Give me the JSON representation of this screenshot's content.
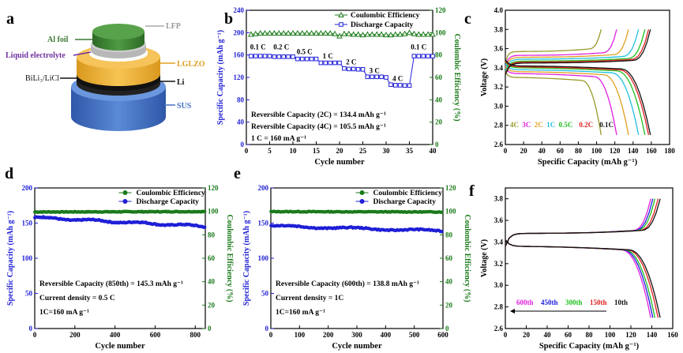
{
  "panel_letters": [
    "a",
    "b",
    "c",
    "d",
    "e",
    "f"
  ],
  "battery": {
    "labels": [
      "Al foil",
      "LFP",
      "Liquid electrolyte",
      "LGLZO",
      "BiLi₃/LiCl",
      "Li",
      "SUS"
    ],
    "colors": {
      "al": "#3c7a34",
      "lfp": "#aaaaaa",
      "liquid": "#7030a0",
      "lglzo": "#f2b233",
      "bili": "#1a1a1a",
      "li": "#1a1a1a",
      "sus": "#4472c4"
    }
  },
  "colors": {
    "blue": "#1f1fd6",
    "green": "#1a7a1a",
    "axis": "#000000"
  },
  "chart_data": [
    {
      "panel": "b",
      "type": "scatter",
      "xlabel": "Cycle number",
      "ylabel": "Specific Capacity (mAh g⁻¹)",
      "y2label": "Coulombic Efficiency (%)",
      "xlim": [
        0,
        40
      ],
      "ylim": [
        0,
        240
      ],
      "y2lim": [
        0,
        120
      ],
      "xticks": [
        0,
        5,
        10,
        15,
        20,
        25,
        30,
        35,
        40
      ],
      "yticks": [
        0,
        40,
        80,
        120,
        160,
        200,
        240
      ],
      "y2ticks": [
        0,
        20,
        40,
        60,
        80,
        100,
        120
      ],
      "legend": [
        "Coulombic Efficiency",
        "Discharge Capacity"
      ],
      "rate_labels": [
        {
          "text": "0.1 C",
          "x": 2.5,
          "y": 170
        },
        {
          "text": "0.2 C",
          "x": 7.5,
          "y": 170
        },
        {
          "text": "0.5 C",
          "x": 12.5,
          "y": 162
        },
        {
          "text": "1 C",
          "x": 17.5,
          "y": 154
        },
        {
          "text": "2 C",
          "x": 22.5,
          "y": 143
        },
        {
          "text": "3 C",
          "x": 27.5,
          "y": 128
        },
        {
          "text": "4 C",
          "x": 32.5,
          "y": 114
        },
        {
          "text": "0.1 C",
          "x": 37,
          "y": 170
        }
      ],
      "annotations": [
        "Reversible Capacity (2C) = 134.4 mAh g⁻¹",
        "Reversible Capacity (4C) = 105.5 mAh g⁻¹",
        "1 C = 160 mA g⁻¹"
      ],
      "series": [
        {
          "name": "Coulombic Efficiency",
          "axis": "right",
          "marker": "triangle",
          "x": [
            1,
            2,
            3,
            4,
            5,
            6,
            7,
            8,
            9,
            10,
            11,
            12,
            13,
            14,
            15,
            16,
            17,
            18,
            19,
            20,
            21,
            22,
            23,
            24,
            25,
            26,
            27,
            28,
            29,
            30,
            31,
            32,
            33,
            34,
            35,
            36,
            37,
            38,
            39,
            40
          ],
          "values": [
            98.5,
            99,
            99.5,
            99.5,
            99.5,
            99.5,
            99.5,
            99.5,
            99.5,
            99.5,
            99.5,
            99.5,
            99.5,
            99.5,
            99.5,
            99.5,
            99.5,
            99.5,
            99,
            97,
            99,
            99,
            98.5,
            98.5,
            98,
            98.5,
            98.5,
            98.5,
            98.5,
            98,
            98,
            98.5,
            98.5,
            99,
            100,
            99,
            98.5,
            98.5,
            98.5,
            98.5
          ]
        },
        {
          "name": "Discharge Capacity",
          "axis": "left",
          "marker": "square",
          "x": [
            1,
            2,
            3,
            4,
            5,
            6,
            7,
            8,
            9,
            10,
            11,
            12,
            13,
            14,
            15,
            16,
            17,
            18,
            19,
            20,
            21,
            22,
            23,
            24,
            25,
            26,
            27,
            28,
            29,
            30,
            31,
            32,
            33,
            34,
            35,
            36,
            37,
            38,
            39,
            40
          ],
          "values": [
            158,
            158,
            158,
            158,
            158,
            157,
            157,
            157,
            157,
            157,
            153,
            153,
            153,
            153,
            153,
            146,
            146,
            146,
            146,
            146,
            136,
            135,
            135,
            134.5,
            134.4,
            121,
            121,
            121,
            121,
            120,
            107,
            106,
            106,
            105.5,
            105.5,
            158,
            158,
            158,
            158,
            158
          ]
        }
      ]
    },
    {
      "panel": "c",
      "type": "line",
      "xlabel": "Specific Capacity (mAh g⁻¹)",
      "ylabel": "Voltage (V)",
      "xlim": [
        0,
        180
      ],
      "ylim": [
        2.6,
        4.0
      ],
      "xticks": [
        0,
        20,
        40,
        60,
        80,
        100,
        120,
        140,
        160,
        180
      ],
      "yticks": [
        2.6,
        2.8,
        3.0,
        3.2,
        3.4,
        3.6,
        3.8,
        4.0
      ],
      "legend_labels": [
        "4C",
        "3C",
        "2C",
        "1C",
        "0.5C",
        "0.2C",
        "0.1C"
      ],
      "series": [
        {
          "name": "4C",
          "color": "#9a9a2a",
          "cap": 105,
          "charge_v": 3.57,
          "discharge_v": 3.3
        },
        {
          "name": "3C",
          "color": "#e020e0",
          "cap": 122,
          "charge_v": 3.53,
          "discharge_v": 3.34
        },
        {
          "name": "2C",
          "color": "#e0a020",
          "cap": 135,
          "charge_v": 3.51,
          "discharge_v": 3.36
        },
        {
          "name": "1C",
          "color": "#20c0e0",
          "cap": 146,
          "charge_v": 3.49,
          "discharge_v": 3.38
        },
        {
          "name": "0.5C",
          "color": "#20c020",
          "cap": 153,
          "charge_v": 3.47,
          "discharge_v": 3.4
        },
        {
          "name": "0.2C",
          "color": "#e02020",
          "cap": 157,
          "charge_v": 3.46,
          "discharge_v": 3.41
        },
        {
          "name": "0.1C",
          "color": "#111111",
          "cap": 159,
          "charge_v": 3.45,
          "discharge_v": 3.42
        }
      ]
    },
    {
      "panel": "d",
      "type": "scatter",
      "xlabel": "Cycle number",
      "ylabel": "Specific Capacity (mAh g⁻¹)",
      "y2label": "Coulombic Efficiency (%)",
      "xlim": [
        0,
        850
      ],
      "ylim": [
        0,
        200
      ],
      "y2lim": [
        0,
        120
      ],
      "xticks": [
        0,
        200,
        400,
        600,
        800
      ],
      "yticks": [
        0,
        50,
        100,
        150,
        200
      ],
      "y2ticks": [
        0,
        20,
        40,
        60,
        80,
        100,
        120
      ],
      "legend": [
        "Coulombic Efficiency",
        "Discharge Capacity"
      ],
      "annotations": [
        "Reversible Capacity (850th) = 145.3 mAh g⁻¹",
        "Current density = 0.5 C",
        "1C=160 mA g⁻¹"
      ],
      "series": [
        {
          "name": "Coulombic Efficiency",
          "axis": "right",
          "start": 99.5,
          "end": 99.8
        },
        {
          "name": "Discharge Capacity",
          "axis": "left",
          "start": 158,
          "end": 145.3
        }
      ]
    },
    {
      "panel": "e",
      "type": "scatter",
      "xlabel": "Cycle number",
      "ylabel": "Specific Capacity (mAh g⁻¹)",
      "y2label": "Coulombic Efficiency (%)",
      "xlim": [
        0,
        600
      ],
      "ylim": [
        0,
        200
      ],
      "y2lim": [
        0,
        120
      ],
      "xticks": [
        0,
        100,
        200,
        300,
        400,
        500,
        600
      ],
      "yticks": [
        0,
        50,
        100,
        150,
        200
      ],
      "y2ticks": [
        0,
        20,
        40,
        60,
        80,
        100,
        120
      ],
      "legend": [
        "Coulombic Efficiency",
        "Discharge Capacity"
      ],
      "annotations": [
        "Reversible Capacity (600th) = 138.8 mAh g⁻¹",
        "Current density = 1C",
        "1C=160 mA g⁻¹"
      ],
      "series": [
        {
          "name": "Coulombic Efficiency",
          "axis": "right",
          "start": 99.8,
          "end": 99.5
        },
        {
          "name": "Discharge Capacity",
          "axis": "left",
          "start": 146,
          "end": 138.8
        }
      ]
    },
    {
      "panel": "f",
      "type": "line",
      "xlabel": "Specific Capacity (mAh g⁻¹)",
      "ylabel": "Voltage (V)",
      "xlim": [
        0,
        160
      ],
      "ylim": [
        2.6,
        3.9
      ],
      "xticks": [
        0,
        20,
        40,
        60,
        80,
        100,
        120,
        140,
        160
      ],
      "yticks": [
        2.6,
        2.8,
        3.0,
        3.2,
        3.4,
        3.6,
        3.8
      ],
      "legend_labels": [
        "600th",
        "450th",
        "300th",
        "150th",
        "10th"
      ],
      "series": [
        {
          "name": "600th",
          "color": "#e020e0",
          "cap": 139
        },
        {
          "name": "450th",
          "color": "#2020e0",
          "cap": 141
        },
        {
          "name": "300th",
          "color": "#20c020",
          "cap": 143
        },
        {
          "name": "150th",
          "color": "#e02020",
          "cap": 146
        },
        {
          "name": "10th",
          "color": "#111111",
          "cap": 148
        }
      ]
    }
  ]
}
